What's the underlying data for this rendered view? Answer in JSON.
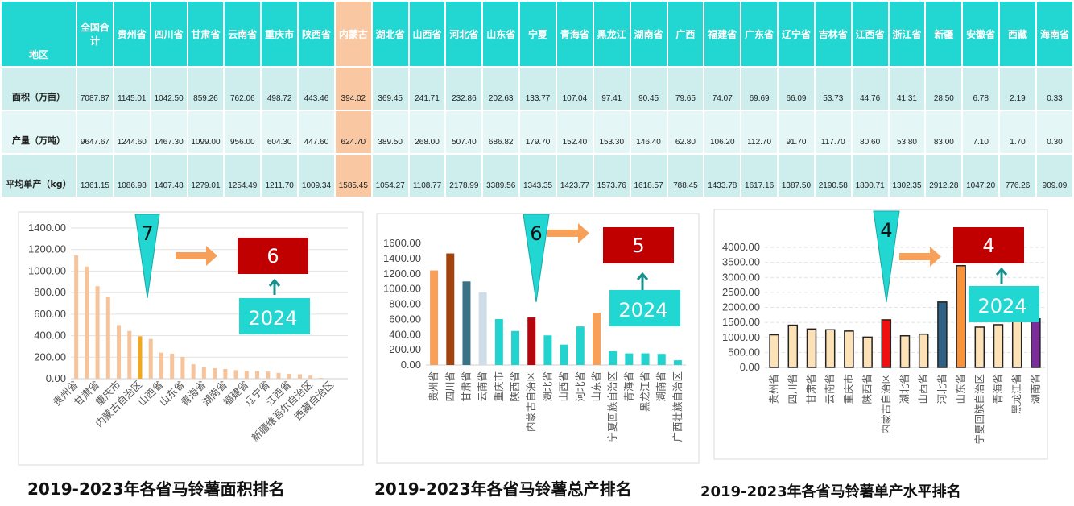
{
  "table": {
    "header_label": "地区",
    "highlight": "内蒙古",
    "columns": [
      "全国合计",
      "贵州省",
      "四川省",
      "甘肃省",
      "云南省",
      "重庆市",
      "陕西省",
      "内蒙古",
      "湖北省",
      "山西省",
      "河北省",
      "山东省",
      "宁夏",
      "青海省",
      "黑龙江",
      "湖南省",
      "广西",
      "福建省",
      "广东省",
      "辽宁省",
      "吉林省",
      "江西省",
      "浙江省",
      "新疆",
      "安徽省",
      "西藏",
      "海南省"
    ],
    "rows": [
      {
        "label": "面积（万亩）",
        "values": [
          "7087.87",
          "1145.01",
          "1042.50",
          "859.26",
          "762.06",
          "498.72",
          "443.46",
          "394.02",
          "369.45",
          "241.71",
          "232.86",
          "202.63",
          "133.77",
          "107.04",
          "97.41",
          "90.45",
          "79.65",
          "74.07",
          "69.69",
          "66.09",
          "53.73",
          "44.76",
          "41.31",
          "28.50",
          "6.78",
          "2.19",
          "0.33"
        ]
      },
      {
        "label": "产量（万吨）",
        "values": [
          "9647.67",
          "1244.60",
          "1467.30",
          "1099.00",
          "956.00",
          "604.30",
          "447.60",
          "624.70",
          "389.50",
          "268.00",
          "507.40",
          "686.82",
          "179.70",
          "152.40",
          "153.30",
          "146.40",
          "62.80",
          "106.20",
          "112.70",
          "91.70",
          "117.70",
          "80.60",
          "53.80",
          "83.00",
          "7.10",
          "1.70",
          "0.30"
        ]
      },
      {
        "label": "平均单产（kg）",
        "values": [
          "1361.15",
          "1086.98",
          "1407.48",
          "1279.01",
          "1254.49",
          "1211.70",
          "1009.34",
          "1585.45",
          "1054.27",
          "1108.77",
          "2178.99",
          "3389.56",
          "1343.35",
          "1423.77",
          "1573.76",
          "1618.57",
          "788.45",
          "1433.78",
          "1617.16",
          "1387.50",
          "2190.58",
          "1800.71",
          "1302.35",
          "2912.28",
          "1047.20",
          "776.26",
          "909.09"
        ]
      }
    ]
  },
  "chart_data": [
    {
      "type": "bar",
      "title": "2019-2023年各省马铃薯面积排名",
      "ylim": [
        0,
        1400
      ],
      "yticks": [
        "0.00",
        "200.00",
        "400.00",
        "600.00",
        "800.00",
        "1000.00",
        "1200.00",
        "1400.00"
      ],
      "grid": true,
      "categories": [
        "贵州省",
        "",
        "甘肃省",
        "",
        "重庆市",
        "",
        "内蒙古自治区",
        "",
        "山西省",
        "",
        "山东省",
        "",
        "青海省",
        "",
        "湖南省",
        "",
        "福建省",
        "",
        "辽宁省",
        "",
        "江西省",
        "",
        "新疆维吾尔自治区",
        "",
        "西藏自治区",
        ""
      ],
      "values": [
        1145.01,
        1042.5,
        859.26,
        762.06,
        498.72,
        443.46,
        394.02,
        369.45,
        241.71,
        232.86,
        202.63,
        133.77,
        107.04,
        97.41,
        90.45,
        79.65,
        74.07,
        69.69,
        66.09,
        53.73,
        44.76,
        41.31,
        28.5,
        6.78,
        2.19,
        0.33
      ],
      "colors": {
        "default": "#f7c39a",
        "highlight": "#f0a820"
      },
      "highlight_index": 6,
      "annotation": {
        "rank_2019_2023": "7",
        "rank_2024": "6",
        "year": "2024"
      }
    },
    {
      "type": "bar",
      "title": "2019-2023年各省马铃薯总产排名",
      "ylim": [
        0,
        1600
      ],
      "yticks": [
        "0.00",
        "200.00",
        "400.00",
        "600.00",
        "800.00",
        "1000.00",
        "1200.00",
        "1400.00",
        "1600.00"
      ],
      "grid": false,
      "categories": [
        "贵州省",
        "四川省",
        "甘肃省",
        "云南省",
        "重庆市",
        "陕西省",
        "内蒙古自治区",
        "湖北省",
        "山西省",
        "河北省",
        "山东省",
        "宁夏回族自治区",
        "青海省",
        "黑龙江省",
        "湖南省",
        "广西壮族自治区"
      ],
      "values": [
        1244.6,
        1467.3,
        1099.0,
        956.0,
        604.3,
        447.6,
        624.7,
        389.5,
        268.0,
        507.4,
        686.82,
        179.7,
        152.4,
        153.3,
        146.4,
        62.8
      ],
      "bar_colors": [
        "#f6a05a",
        "#a0430f",
        "#3a7385",
        "#cfdde8",
        "#24d3cd",
        "#24d3cd",
        "#b5060e",
        "#24d3cd",
        "#24d3cd",
        "#24d3cd",
        "#f6a05a",
        "#24d3cd",
        "#24d3cd",
        "#24d3cd",
        "#24d3cd",
        "#24d3cd"
      ],
      "annotation": {
        "rank_2019_2023": "6",
        "rank_2024": "5",
        "year": "2024"
      }
    },
    {
      "type": "bar",
      "title": "2019-2023年各省马铃薯单产水平排名",
      "ylim": [
        0,
        4000
      ],
      "yticks": [
        "0.00",
        "500.00",
        "1000.00",
        "1500.00",
        "2000.00",
        "2500.00",
        "3000.00",
        "3500.00",
        "4000.00"
      ],
      "grid": true,
      "categories": [
        "贵州省",
        "四川省",
        "甘肃省",
        "云南省",
        "重庆市",
        "陕西省",
        "内蒙古自治区",
        "湖北省",
        "山西省",
        "河北省",
        "山东省",
        "宁夏回族自治区",
        "青海省",
        "黑龙江省",
        "湖南省"
      ],
      "values": [
        1086.98,
        1407.48,
        1279.01,
        1254.49,
        1211.7,
        1009.34,
        1585.45,
        1054.27,
        1108.77,
        2178.99,
        3389.56,
        1343.35,
        1423.77,
        1573.76,
        1618.57
      ],
      "bar_colors": [
        "#fde2b8",
        "#fde2b8",
        "#fde2b8",
        "#fde2b8",
        "#fde2b8",
        "#fde2b8",
        "#f01010",
        "#fde2b8",
        "#fde2b8",
        "#2f6282",
        "#f7933a",
        "#fde2b8",
        "#fde2b8",
        "#fde2b8",
        "#7b2d9b"
      ],
      "annotation": {
        "rank_2019_2023": "4",
        "rank_2024": "4",
        "year": "2024"
      }
    }
  ]
}
